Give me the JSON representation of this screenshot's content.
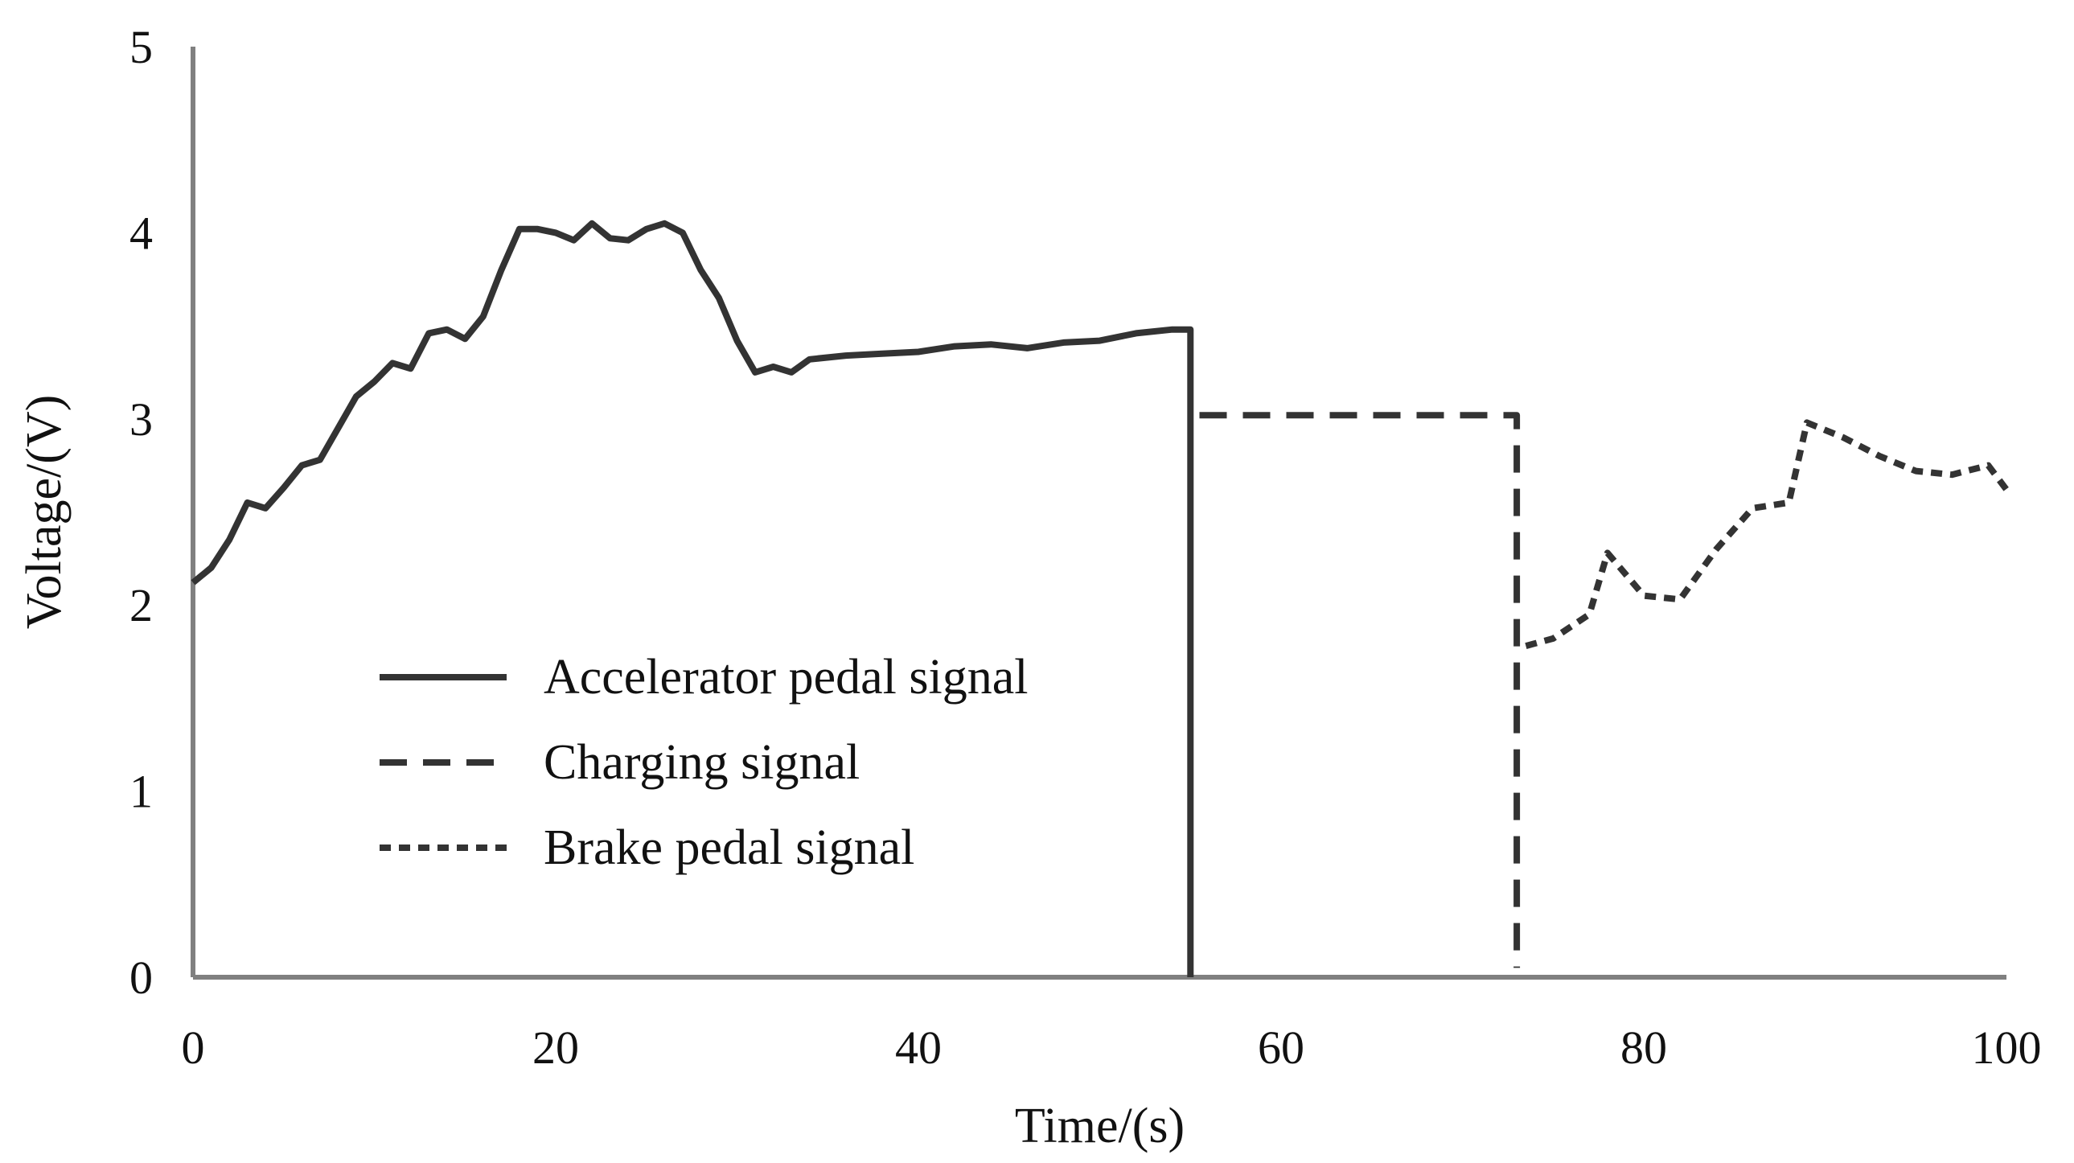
{
  "chart_data": {
    "type": "line",
    "title": "",
    "xlabel": "Time/(s)",
    "ylabel": "Voltage/(V)",
    "xlim": [
      0,
      100
    ],
    "ylim": [
      0,
      5
    ],
    "x_ticks": [
      0,
      20,
      40,
      60,
      80,
      100
    ],
    "y_ticks": [
      0,
      1,
      2,
      3,
      4,
      5
    ],
    "grid": false,
    "legend_position": "center-left",
    "series": [
      {
        "name": "Accelerator pedal signal",
        "style": "solid",
        "color": "#333333",
        "x": [
          0,
          1,
          2,
          3,
          4,
          5,
          6,
          7,
          8,
          9,
          10,
          11,
          12,
          13,
          14,
          15,
          16,
          17,
          18,
          19,
          20,
          21,
          22,
          23,
          24,
          25,
          26,
          27,
          28,
          29,
          30,
          31,
          32,
          33,
          34,
          36,
          38,
          40,
          42,
          44,
          46,
          48,
          50,
          52,
          54,
          55,
          55
        ],
        "y": [
          2.12,
          2.2,
          2.35,
          2.55,
          2.52,
          2.63,
          2.75,
          2.78,
          2.95,
          3.12,
          3.2,
          3.3,
          3.27,
          3.46,
          3.48,
          3.43,
          3.55,
          3.8,
          4.02,
          4.02,
          4.0,
          3.96,
          4.05,
          3.97,
          3.96,
          4.02,
          4.05,
          4.0,
          3.8,
          3.65,
          3.42,
          3.25,
          3.28,
          3.25,
          3.32,
          3.34,
          3.35,
          3.36,
          3.39,
          3.4,
          3.38,
          3.41,
          3.42,
          3.46,
          3.48,
          3.48,
          0
        ]
      },
      {
        "name": "Charging signal",
        "style": "dashed",
        "color": "#333333",
        "x": [
          55.5,
          73,
          73
        ],
        "y": [
          3.02,
          3.02,
          0.05
        ]
      },
      {
        "name": "Brake pedal signal",
        "style": "dotted",
        "color": "#333333",
        "x": [
          73.5,
          75,
          77,
          78,
          80,
          82,
          84,
          86,
          88,
          89,
          91,
          93,
          95,
          97,
          99,
          100
        ],
        "y": [
          1.78,
          1.82,
          1.95,
          2.28,
          2.05,
          2.03,
          2.3,
          2.52,
          2.55,
          2.98,
          2.9,
          2.8,
          2.72,
          2.7,
          2.75,
          2.62
        ]
      }
    ]
  }
}
